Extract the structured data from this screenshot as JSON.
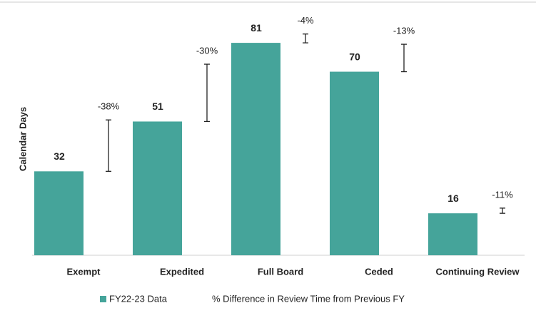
{
  "chart_data": {
    "type": "bar",
    "y_label": "Calendar Days",
    "categories": [
      "Exempt",
      "Expedited",
      "Full Board",
      "Ceded",
      "Continuing Review"
    ],
    "series": [
      {
        "name": "FY22-23 Data",
        "color": "#45a49a",
        "values": [
          32,
          51,
          81,
          70,
          16
        ]
      },
      {
        "name": "% Difference in Review Time from Previous FY",
        "color": "#222222",
        "values": [
          -38,
          -30,
          -4,
          -13,
          -11
        ],
        "value_labels": [
          "-38%",
          "-30%",
          "-4%",
          "-13%",
          "-11%"
        ]
      }
    ],
    "ylim": [
      0,
      90
    ]
  }
}
